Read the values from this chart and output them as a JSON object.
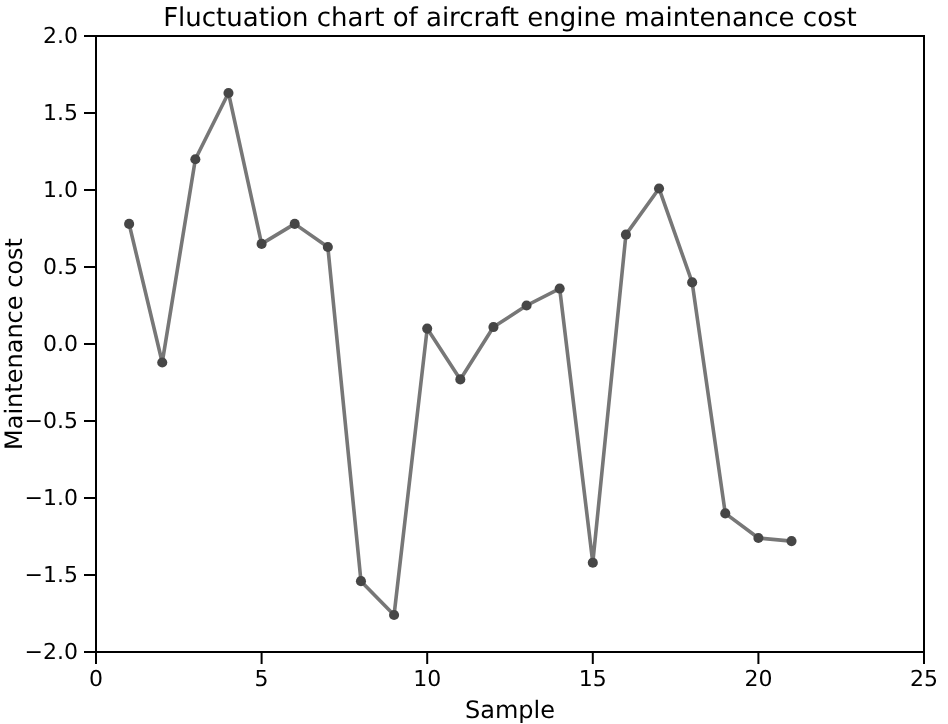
{
  "chart_data": {
    "type": "line",
    "title": "Fluctuation chart of aircraft engine maintenance cost",
    "xlabel": "Sample",
    "ylabel": "Maintenance cost",
    "x": [
      1,
      2,
      3,
      4,
      5,
      6,
      7,
      8,
      9,
      10,
      11,
      12,
      13,
      14,
      15,
      16,
      17,
      18,
      19,
      20,
      21
    ],
    "series": [
      {
        "color": "#777777",
        "values": [
          0.78,
          -0.12,
          1.2,
          1.63,
          0.65,
          0.78,
          0.63,
          -1.54,
          -1.76,
          0.1,
          -0.23,
          0.11,
          0.25,
          0.36,
          -1.42,
          0.71,
          1.01,
          0.4,
          -1.1,
          -1.26,
          -1.28
        ]
      }
    ],
    "xlim": [
      0,
      25
    ],
    "xticks": [
      0,
      5,
      10,
      15,
      20,
      25
    ],
    "ylim": [
      -2,
      2
    ],
    "yticks": [
      {
        "value": -2,
        "label": "−2.0"
      },
      {
        "value": -1.5,
        "label": "−1.5"
      },
      {
        "value": -1,
        "label": "−1.0"
      },
      {
        "value": -0.5,
        "label": "−0.5"
      },
      {
        "value": 0,
        "label": "0.0"
      },
      {
        "value": 0.5,
        "label": "0.5"
      },
      {
        "value": 1,
        "label": "1.0"
      },
      {
        "value": 1.5,
        "label": "1.5"
      },
      {
        "value": 2,
        "label": "2.0"
      }
    ],
    "marker": "circle",
    "line_style": "solid",
    "grid": false
  }
}
